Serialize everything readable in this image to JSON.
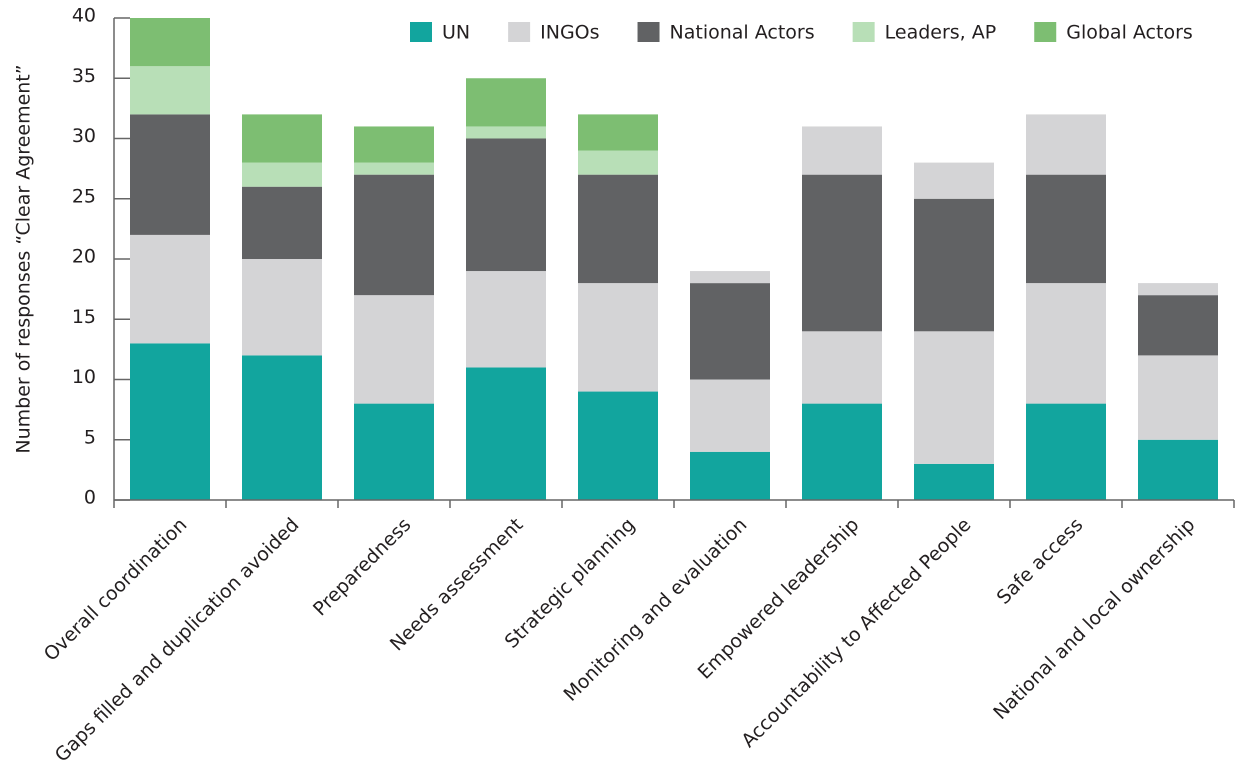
{
  "chart_data": {
    "type": "bar",
    "stacked": true,
    "y_label": "Number of responses “Clear Agreement”",
    "categories": [
      "Overall coordination",
      "Gaps filled and duplication avoided",
      "Preparedness",
      "Needs assessment",
      "Strategic planning",
      "Monitoring and evaluation",
      "Empowered leadership",
      "Accountability to Affected People",
      "Safe access",
      "National and local ownership"
    ],
    "series": [
      {
        "name": "UN",
        "color": "#12a59e",
        "values": [
          13,
          12,
          8,
          11,
          9,
          4,
          8,
          3,
          8,
          5
        ]
      },
      {
        "name": "INGOs",
        "color": "#d4d4d6",
        "values": [
          9,
          8,
          9,
          8,
          9,
          6,
          6,
          11,
          10,
          7
        ]
      },
      {
        "name": "National Actors",
        "color": "#616264",
        "values": [
          10,
          6,
          10,
          11,
          9,
          8,
          13,
          11,
          9,
          5
        ]
      },
      {
        "name": "Leaders, AP",
        "color": "#b8dfb7",
        "values": [
          4,
          2,
          1,
          1,
          2,
          0,
          0,
          0,
          0,
          0
        ]
      },
      {
        "name": "Global Actors",
        "color": "#7dbe72",
        "values": [
          4,
          4,
          3,
          4,
          3,
          0,
          0,
          0,
          0,
          0
        ]
      },
      {
        "color": "#d4d4d6",
        "values": [
          0,
          0,
          0,
          0,
          0,
          1,
          4,
          3,
          5,
          1
        ]
      }
    ],
    "ylim": [
      0,
      40
    ],
    "yticks": [
      0,
      5,
      10,
      15,
      20,
      25,
      30,
      35,
      40
    ],
    "grid": false,
    "legend": "top"
  }
}
